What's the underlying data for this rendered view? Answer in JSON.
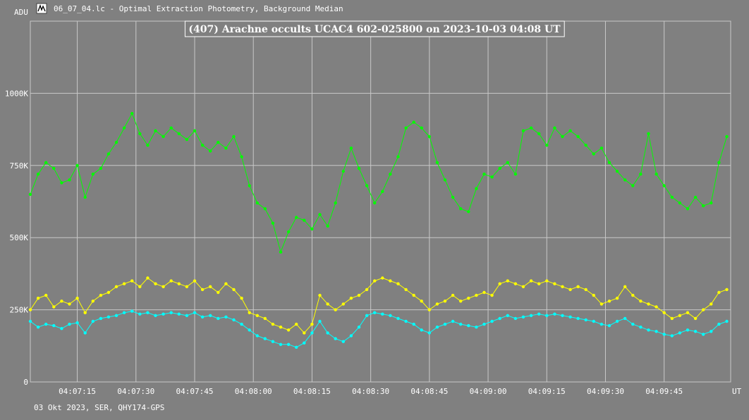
{
  "window": {
    "title": "06_07_04.lc - Optimal Extraction Photometry, Background Median",
    "icon": "lightcurve-app-icon"
  },
  "footer": {
    "caption": "03 Okt 2023, SER, QHY174-GPS"
  },
  "colors": {
    "background": "#808080",
    "grid": "#c8c8c8",
    "series_green": "#00ff00",
    "series_yellow": "#ffff00",
    "series_cyan": "#00ffff"
  },
  "chart_data": {
    "type": "line",
    "title": "(407) Arachne occults UCAC4 602-025800 on 2023-10-03  04:08 UT",
    "ylabel": "ADU",
    "xlabel": "UT",
    "ylim": [
      0,
      1000000
    ],
    "xlim": [
      "04:07:03",
      "04:10:02"
    ],
    "y_ticks": [
      0,
      250000,
      500000,
      750000,
      1000000
    ],
    "y_tick_labels": [
      "0",
      "250K",
      "500K",
      "750K",
      "1000K"
    ],
    "x_ticks": [
      "04:07:15",
      "04:07:30",
      "04:07:45",
      "04:08:00",
      "04:08:15",
      "04:08:30",
      "04:08:45",
      "04:09:00",
      "04:09:15",
      "04:09:30",
      "04:09:45"
    ],
    "grid": true,
    "legend": "none",
    "series": [
      {
        "color": "#00ff00",
        "x": [
          "04:07:03",
          "04:07:05",
          "04:07:07",
          "04:07:09",
          "04:07:11",
          "04:07:13",
          "04:07:15",
          "04:07:17",
          "04:07:19",
          "04:07:21",
          "04:07:23",
          "04:07:25",
          "04:07:27",
          "04:07:29",
          "04:07:31",
          "04:07:33",
          "04:07:35",
          "04:07:37",
          "04:07:39",
          "04:07:41",
          "04:07:43",
          "04:07:45",
          "04:07:47",
          "04:07:49",
          "04:07:51",
          "04:07:53",
          "04:07:55",
          "04:07:57",
          "04:07:59",
          "04:08:01",
          "04:08:03",
          "04:08:05",
          "04:08:07",
          "04:08:09",
          "04:08:11",
          "04:08:13",
          "04:08:15",
          "04:08:17",
          "04:08:19",
          "04:08:21",
          "04:08:23",
          "04:08:25",
          "04:08:27",
          "04:08:29",
          "04:08:31",
          "04:08:33",
          "04:08:35",
          "04:08:37",
          "04:08:39",
          "04:08:41",
          "04:08:43",
          "04:08:45",
          "04:08:47",
          "04:08:49",
          "04:08:51",
          "04:08:53",
          "04:08:55",
          "04:08:57",
          "04:08:59",
          "04:09:01",
          "04:09:03",
          "04:09:05",
          "04:09:07",
          "04:09:09",
          "04:09:11",
          "04:09:13",
          "04:09:15",
          "04:09:17",
          "04:09:19",
          "04:09:21",
          "04:09:23",
          "04:09:25",
          "04:09:27",
          "04:09:29",
          "04:09:31",
          "04:09:33",
          "04:09:35",
          "04:09:37",
          "04:09:39",
          "04:09:41",
          "04:09:43",
          "04:09:45",
          "04:09:47",
          "04:09:49",
          "04:09:51",
          "04:09:53",
          "04:09:55",
          "04:09:57",
          "04:09:59",
          "04:10:01"
        ],
        "values": [
          650000,
          720000,
          760000,
          740000,
          690000,
          700000,
          750000,
          640000,
          720000,
          740000,
          790000,
          830000,
          880000,
          930000,
          860000,
          820000,
          870000,
          850000,
          880000,
          860000,
          840000,
          870000,
          820000,
          800000,
          830000,
          810000,
          850000,
          780000,
          680000,
          620000,
          600000,
          550000,
          450000,
          520000,
          570000,
          560000,
          530000,
          580000,
          540000,
          620000,
          730000,
          810000,
          740000,
          680000,
          620000,
          660000,
          720000,
          780000,
          880000,
          900000,
          880000,
          850000,
          760000,
          700000,
          640000,
          600000,
          590000,
          670000,
          720000,
          710000,
          740000,
          760000,
          720000,
          870000,
          880000,
          860000,
          820000,
          880000,
          850000,
          870000,
          850000,
          820000,
          790000,
          810000,
          760000,
          730000,
          700000,
          680000,
          720000,
          860000,
          720000,
          680000,
          640000,
          620000,
          600000,
          640000,
          610000,
          620000,
          760000,
          850000
        ]
      },
      {
        "color": "#ffff00",
        "x": [
          "04:07:03",
          "04:07:05",
          "04:07:07",
          "04:07:09",
          "04:07:11",
          "04:07:13",
          "04:07:15",
          "04:07:17",
          "04:07:19",
          "04:07:21",
          "04:07:23",
          "04:07:25",
          "04:07:27",
          "04:07:29",
          "04:07:31",
          "04:07:33",
          "04:07:35",
          "04:07:37",
          "04:07:39",
          "04:07:41",
          "04:07:43",
          "04:07:45",
          "04:07:47",
          "04:07:49",
          "04:07:51",
          "04:07:53",
          "04:07:55",
          "04:07:57",
          "04:07:59",
          "04:08:01",
          "04:08:03",
          "04:08:05",
          "04:08:07",
          "04:08:09",
          "04:08:11",
          "04:08:13",
          "04:08:15",
          "04:08:17",
          "04:08:19",
          "04:08:21",
          "04:08:23",
          "04:08:25",
          "04:08:27",
          "04:08:29",
          "04:08:31",
          "04:08:33",
          "04:08:35",
          "04:08:37",
          "04:08:39",
          "04:08:41",
          "04:08:43",
          "04:08:45",
          "04:08:47",
          "04:08:49",
          "04:08:51",
          "04:08:53",
          "04:08:55",
          "04:08:57",
          "04:08:59",
          "04:09:01",
          "04:09:03",
          "04:09:05",
          "04:09:07",
          "04:09:09",
          "04:09:11",
          "04:09:13",
          "04:09:15",
          "04:09:17",
          "04:09:19",
          "04:09:21",
          "04:09:23",
          "04:09:25",
          "04:09:27",
          "04:09:29",
          "04:09:31",
          "04:09:33",
          "04:09:35",
          "04:09:37",
          "04:09:39",
          "04:09:41",
          "04:09:43",
          "04:09:45",
          "04:09:47",
          "04:09:49",
          "04:09:51",
          "04:09:53",
          "04:09:55",
          "04:09:57",
          "04:09:59",
          "04:10:01"
        ],
        "values": [
          250000,
          290000,
          300000,
          260000,
          280000,
          270000,
          290000,
          240000,
          280000,
          300000,
          310000,
          330000,
          340000,
          350000,
          330000,
          360000,
          340000,
          330000,
          350000,
          340000,
          330000,
          350000,
          320000,
          330000,
          310000,
          340000,
          320000,
          290000,
          240000,
          230000,
          220000,
          200000,
          190000,
          180000,
          200000,
          170000,
          200000,
          300000,
          270000,
          250000,
          270000,
          290000,
          300000,
          320000,
          350000,
          360000,
          350000,
          340000,
          320000,
          300000,
          280000,
          250000,
          270000,
          280000,
          300000,
          280000,
          290000,
          300000,
          310000,
          300000,
          340000,
          350000,
          340000,
          330000,
          350000,
          340000,
          350000,
          340000,
          330000,
          320000,
          330000,
          320000,
          300000,
          270000,
          280000,
          290000,
          330000,
          300000,
          280000,
          270000,
          260000,
          240000,
          220000,
          230000,
          240000,
          220000,
          250000,
          270000,
          310000,
          320000
        ]
      },
      {
        "color": "#00ffff",
        "x": [
          "04:07:03",
          "04:07:05",
          "04:07:07",
          "04:07:09",
          "04:07:11",
          "04:07:13",
          "04:07:15",
          "04:07:17",
          "04:07:19",
          "04:07:21",
          "04:07:23",
          "04:07:25",
          "04:07:27",
          "04:07:29",
          "04:07:31",
          "04:07:33",
          "04:07:35",
          "04:07:37",
          "04:07:39",
          "04:07:41",
          "04:07:43",
          "04:07:45",
          "04:07:47",
          "04:07:49",
          "04:07:51",
          "04:07:53",
          "04:07:55",
          "04:07:57",
          "04:07:59",
          "04:08:01",
          "04:08:03",
          "04:08:05",
          "04:08:07",
          "04:08:09",
          "04:08:11",
          "04:08:13",
          "04:08:15",
          "04:08:17",
          "04:08:19",
          "04:08:21",
          "04:08:23",
          "04:08:25",
          "04:08:27",
          "04:08:29",
          "04:08:31",
          "04:08:33",
          "04:08:35",
          "04:08:37",
          "04:08:39",
          "04:08:41",
          "04:08:43",
          "04:08:45",
          "04:08:47",
          "04:08:49",
          "04:08:51",
          "04:08:53",
          "04:08:55",
          "04:08:57",
          "04:08:59",
          "04:09:01",
          "04:09:03",
          "04:09:05",
          "04:09:07",
          "04:09:09",
          "04:09:11",
          "04:09:13",
          "04:09:15",
          "04:09:17",
          "04:09:19",
          "04:09:21",
          "04:09:23",
          "04:09:25",
          "04:09:27",
          "04:09:29",
          "04:09:31",
          "04:09:33",
          "04:09:35",
          "04:09:37",
          "04:09:39",
          "04:09:41",
          "04:09:43",
          "04:09:45",
          "04:09:47",
          "04:09:49",
          "04:09:51",
          "04:09:53",
          "04:09:55",
          "04:09:57",
          "04:09:59",
          "04:10:01"
        ],
        "values": [
          210000,
          190000,
          200000,
          195000,
          185000,
          200000,
          205000,
          170000,
          210000,
          220000,
          225000,
          230000,
          240000,
          245000,
          235000,
          240000,
          230000,
          235000,
          240000,
          235000,
          230000,
          240000,
          225000,
          230000,
          220000,
          225000,
          215000,
          200000,
          180000,
          160000,
          150000,
          140000,
          130000,
          130000,
          120000,
          135000,
          170000,
          210000,
          170000,
          150000,
          140000,
          160000,
          190000,
          230000,
          240000,
          235000,
          230000,
          220000,
          210000,
          200000,
          180000,
          170000,
          190000,
          200000,
          210000,
          200000,
          195000,
          190000,
          200000,
          210000,
          220000,
          230000,
          220000,
          225000,
          230000,
          235000,
          230000,
          235000,
          230000,
          225000,
          220000,
          215000,
          210000,
          200000,
          195000,
          210000,
          220000,
          200000,
          190000,
          180000,
          175000,
          165000,
          160000,
          170000,
          180000,
          175000,
          165000,
          175000,
          200000,
          210000
        ]
      }
    ]
  }
}
